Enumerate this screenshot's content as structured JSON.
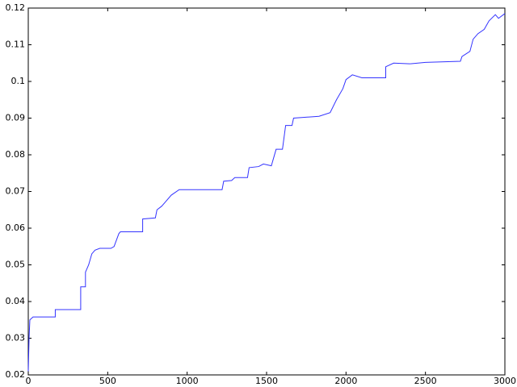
{
  "chart_data": {
    "type": "line",
    "x": [
      0,
      5,
      10,
      30,
      170,
      170,
      330,
      330,
      360,
      360,
      380,
      400,
      420,
      450,
      520,
      540,
      570,
      580,
      720,
      720,
      800,
      810,
      840,
      860,
      900,
      950,
      1000,
      1220,
      1230,
      1280,
      1300,
      1380,
      1390,
      1450,
      1480,
      1530,
      1560,
      1600,
      1620,
      1660,
      1670,
      1830,
      1900,
      1940,
      1980,
      2000,
      2040,
      2100,
      2250,
      2250,
      2300,
      2400,
      2500,
      2720,
      2730,
      2780,
      2800,
      2830,
      2870,
      2900,
      2940,
      2960,
      3000
    ],
    "series": [
      {
        "color": "#3333ff",
        "values": [
          0.021,
          0.03,
          0.035,
          0.0358,
          0.0358,
          0.0378,
          0.0378,
          0.044,
          0.044,
          0.048,
          0.05,
          0.053,
          0.054,
          0.0545,
          0.0545,
          0.055,
          0.0585,
          0.059,
          0.059,
          0.0625,
          0.0628,
          0.065,
          0.066,
          0.067,
          0.069,
          0.0705,
          0.0705,
          0.0705,
          0.0728,
          0.073,
          0.0738,
          0.0738,
          0.0765,
          0.0768,
          0.0775,
          0.077,
          0.0815,
          0.0815,
          0.088,
          0.088,
          0.09,
          0.0905,
          0.0915,
          0.095,
          0.098,
          0.1005,
          0.1018,
          0.101,
          0.101,
          0.104,
          0.105,
          0.1048,
          0.1052,
          0.1055,
          0.1068,
          0.1082,
          0.1115,
          0.113,
          0.1142,
          0.1165,
          0.1182,
          0.1172,
          0.1185
        ]
      }
    ],
    "xlim": [
      0,
      3000
    ],
    "xticks": [
      0,
      500,
      1000,
      1500,
      2000,
      2500,
      3000
    ],
    "ylim": [
      0.02,
      0.12
    ],
    "yticks": [
      0.02,
      0.03,
      0.04,
      0.05,
      0.06,
      0.07,
      0.08,
      0.09,
      0.1,
      0.11,
      0.12
    ]
  }
}
